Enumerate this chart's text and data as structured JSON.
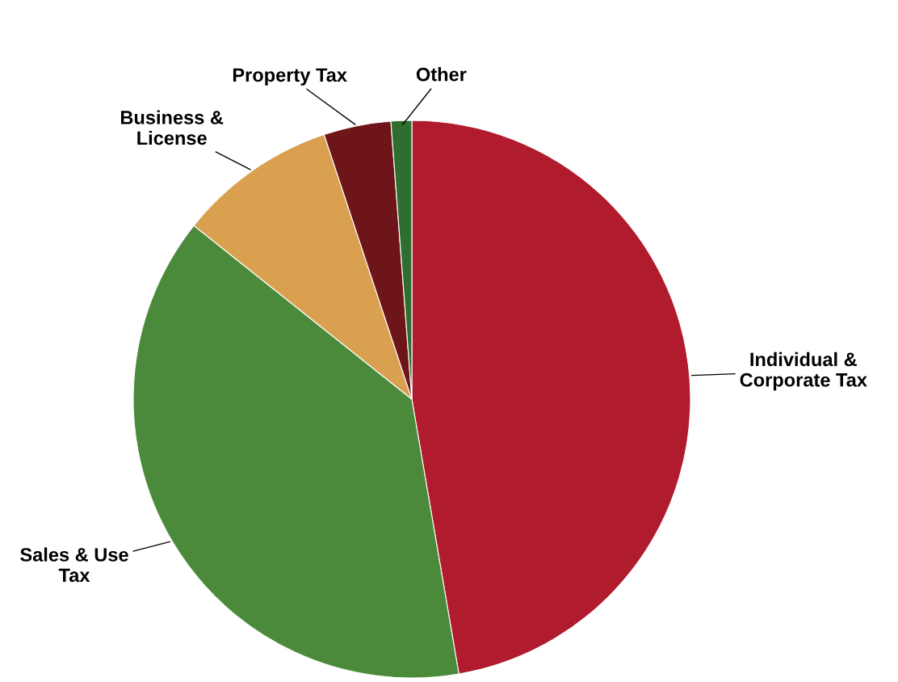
{
  "chart_data": {
    "type": "pie",
    "categories": [
      "Individual &\nCorporate Tax",
      "Sales & Use\nTax",
      "Business &\nLicense",
      "Property Tax",
      "Other"
    ],
    "values": [
      47.3,
      38.4,
      9.2,
      3.9,
      1.2
    ],
    "colors": [
      "#b01c2e",
      "#4a8a3a",
      "#d9a050",
      "#6e1519",
      "#2e6e2e"
    ],
    "legend": false
  }
}
